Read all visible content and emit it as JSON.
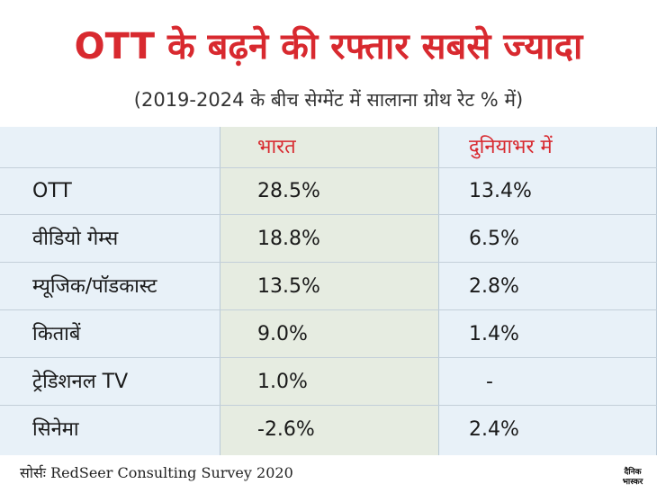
{
  "title": "OTT के बढ़ने की रफ्तार सबसे ज्यादा",
  "subtitle": "(2019-2024 के बीच सेग्मेंट में सालाना ग्रोथ रेट % में)",
  "source": "सोर्सः RedSeer Consulting Survey 2020",
  "logo": {
    "line1": "दैनिक",
    "line2": "भास्कर"
  },
  "colors": {
    "accent": "#d8292f",
    "table_bg": "#e8f1f8",
    "india_col_bg": "#e6ece1"
  },
  "chart_data": {
    "type": "table",
    "columns": [
      "",
      "भारत",
      "दुनियाभर में"
    ],
    "rows": [
      {
        "segment": "OTT",
        "india": "28.5%",
        "world": "13.4%"
      },
      {
        "segment": "वीडियो गेम्स",
        "india": "18.8%",
        "world": "6.5%"
      },
      {
        "segment": "म्यूजिक/पॉडकास्ट",
        "india": "13.5%",
        "world": "2.8%"
      },
      {
        "segment": "किताबें",
        "india": "9.0%",
        "world": "1.4%"
      },
      {
        "segment": "ट्रेडिशनल TV",
        "india": "1.0%",
        "world": "-"
      },
      {
        "segment": "सिनेमा",
        "india": "-2.6%",
        "world": "2.4%"
      }
    ],
    "values_india": [
      28.5,
      18.8,
      13.5,
      9.0,
      1.0,
      -2.6
    ],
    "values_world": [
      13.4,
      6.5,
      2.8,
      1.4,
      null,
      2.4
    ]
  }
}
